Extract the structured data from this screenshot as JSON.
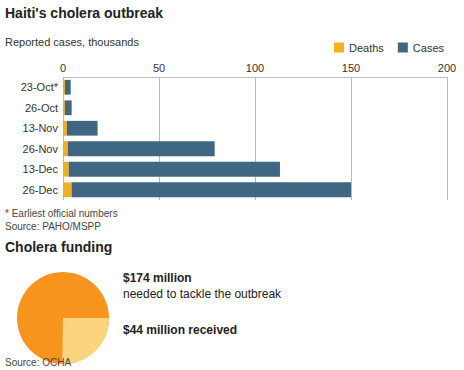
{
  "chart_data": [
    {
      "type": "bar",
      "orientation": "horizontal",
      "stacked": true,
      "title": "Haiti's cholera outbreak",
      "subtitle": "Reported cases, thousands",
      "categories": [
        "23-Oct*",
        "26-Oct",
        "13-Nov",
        "26-Nov",
        "13-Dec",
        "26-Dec"
      ],
      "series": [
        {
          "name": "Deaths",
          "color": "#f2b01e",
          "values": [
            1,
            1,
            2,
            2.5,
            3,
            4.5
          ]
        },
        {
          "name": "Cases",
          "color": "#3f6683",
          "values": [
            3,
            3.5,
            16,
            76.5,
            110,
            145.5
          ]
        }
      ],
      "xlim": [
        0,
        200
      ],
      "xticks": [
        0,
        50,
        100,
        150,
        200
      ],
      "grid": true,
      "legend": "top-right",
      "annotations": [
        "* Earliest official numbers"
      ],
      "source": "Source: PAHO/MSPP"
    },
    {
      "type": "pie",
      "title": "Cholera funding",
      "values": [
        174,
        44
      ],
      "value_labels": [
        "$174 million",
        "$44 million received"
      ],
      "annotations": [
        "needed to tackle the outbreak"
      ],
      "colors": [
        "#f7941d",
        "#fcd47e"
      ],
      "source": "Source: OCHA"
    }
  ]
}
